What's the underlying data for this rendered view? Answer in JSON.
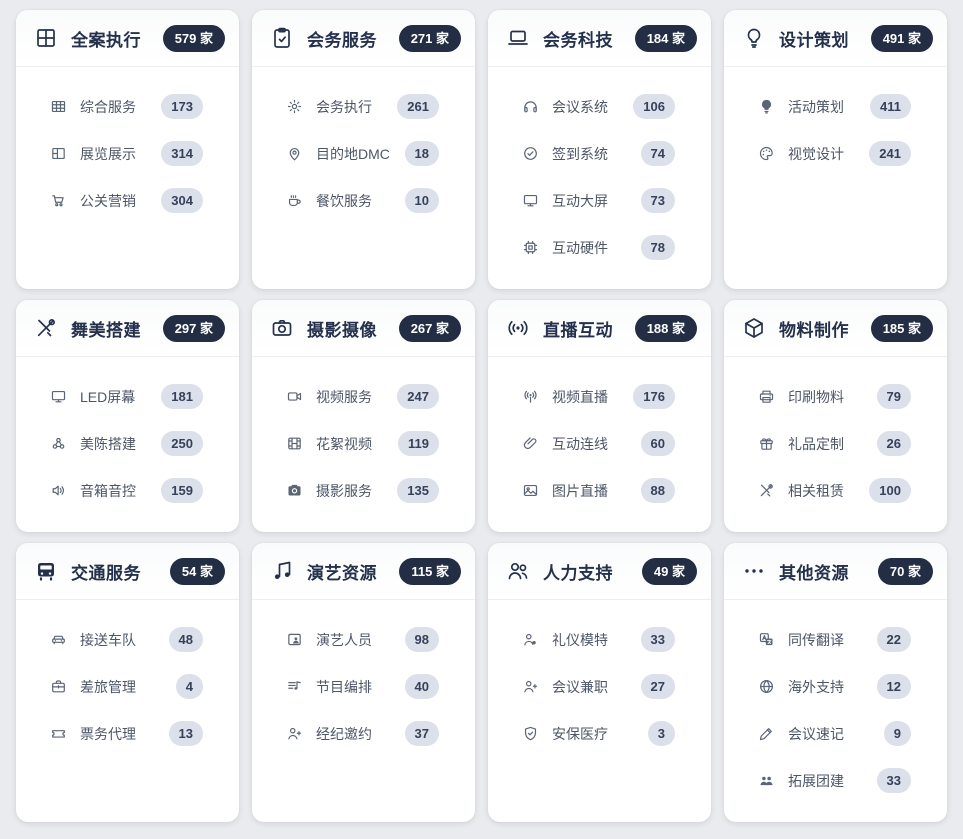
{
  "count_suffix": "家",
  "colors": {
    "page_background": "#e9ebee",
    "card_background": "#ffffff",
    "title_navy": "#25314c",
    "header_badge_bg": "#232e44",
    "header_badge_text": "#ffffff",
    "item_text": "#4d5667",
    "item_badge_bg": "#dbe0ea",
    "item_badge_text": "#36415a"
  },
  "cards": [
    {
      "title": "全案执行",
      "icon": "grid-icon",
      "count": "579",
      "items": [
        {
          "icon": "table-grid-icon",
          "label": "综合服务",
          "count": "173"
        },
        {
          "icon": "layout-icon",
          "label": "展览展示",
          "count": "314"
        },
        {
          "icon": "cart-icon",
          "label": "公关营销",
          "count": "304"
        }
      ]
    },
    {
      "title": "会务服务",
      "icon": "clipboard-check-icon",
      "count": "271",
      "items": [
        {
          "icon": "gear-icon",
          "label": "会务执行",
          "count": "261"
        },
        {
          "icon": "map-pin-icon",
          "label": "目的地DMC",
          "count": "18"
        },
        {
          "icon": "coffee-icon",
          "label": "餐饮服务",
          "count": "10"
        }
      ]
    },
    {
      "title": "会务科技",
      "icon": "laptop-icon",
      "count": "184",
      "items": [
        {
          "icon": "headphones-icon",
          "label": "会议系统",
          "count": "106"
        },
        {
          "icon": "check-circle-icon",
          "label": "签到系统",
          "count": "74"
        },
        {
          "icon": "monitor-icon",
          "label": "互动大屏",
          "count": "73"
        },
        {
          "icon": "cpu-icon",
          "label": "互动硬件",
          "count": "78"
        }
      ]
    },
    {
      "title": "设计策划",
      "icon": "lightbulb-icon",
      "count": "491",
      "items": [
        {
          "icon": "lightbulb-filled-icon",
          "label": "活动策划",
          "count": "411"
        },
        {
          "icon": "palette-icon",
          "label": "视觉设计",
          "count": "241"
        }
      ]
    },
    {
      "title": "舞美搭建",
      "icon": "tools-icon",
      "count": "297",
      "items": [
        {
          "icon": "monitor-icon",
          "label": "LED屏幕",
          "count": "181"
        },
        {
          "icon": "cluster-icon",
          "label": "美陈搭建",
          "count": "250"
        },
        {
          "icon": "speaker-icon",
          "label": "音箱音控",
          "count": "159"
        }
      ]
    },
    {
      "title": "摄影摄像",
      "icon": "camera-icon",
      "count": "267",
      "items": [
        {
          "icon": "video-camera-icon",
          "label": "视频服务",
          "count": "247"
        },
        {
          "icon": "film-icon",
          "label": "花絮视频",
          "count": "119"
        },
        {
          "icon": "camera-filled-icon",
          "label": "摄影服务",
          "count": "135"
        }
      ]
    },
    {
      "title": "直播互动",
      "icon": "broadcast-icon",
      "count": "188",
      "items": [
        {
          "icon": "live-antenna-icon",
          "label": "视频直播",
          "count": "176"
        },
        {
          "icon": "link-icon",
          "label": "互动连线",
          "count": "60"
        },
        {
          "icon": "image-icon",
          "label": "图片直播",
          "count": "88"
        }
      ]
    },
    {
      "title": "物料制作",
      "icon": "cube-icon",
      "count": "185",
      "items": [
        {
          "icon": "printer-icon",
          "label": "印刷物料",
          "count": "79"
        },
        {
          "icon": "gift-icon",
          "label": "礼品定制",
          "count": "26"
        },
        {
          "icon": "tools-small-icon",
          "label": "相关租赁",
          "count": "100"
        }
      ]
    },
    {
      "title": "交通服务",
      "icon": "bus-icon",
      "count": "54",
      "items": [
        {
          "icon": "car-icon",
          "label": "接送车队",
          "count": "48"
        },
        {
          "icon": "briefcase-icon",
          "label": "差旅管理",
          "count": "4"
        },
        {
          "icon": "ticket-icon",
          "label": "票务代理",
          "count": "13"
        }
      ]
    },
    {
      "title": "演艺资源",
      "icon": "music-note-icon",
      "count": "115",
      "items": [
        {
          "icon": "performer-icon",
          "label": "演艺人员",
          "count": "98"
        },
        {
          "icon": "playlist-icon",
          "label": "节目编排",
          "count": "40"
        },
        {
          "icon": "person-plus-icon",
          "label": "经纪邀约",
          "count": "37"
        }
      ]
    },
    {
      "title": "人力支持",
      "icon": "users-icon",
      "count": "49",
      "items": [
        {
          "icon": "person-dot-icon",
          "label": "礼仪模特",
          "count": "33"
        },
        {
          "icon": "person-plus-icon",
          "label": "会议兼职",
          "count": "27"
        },
        {
          "icon": "shield-check-icon",
          "label": "安保医疗",
          "count": "3"
        }
      ]
    },
    {
      "title": "其他资源",
      "icon": "ellipsis-icon",
      "count": "70",
      "items": [
        {
          "icon": "translate-icon",
          "label": "同传翻译",
          "count": "22"
        },
        {
          "icon": "globe-icon",
          "label": "海外支持",
          "count": "12"
        },
        {
          "icon": "pencil-icon",
          "label": "会议速记",
          "count": "9"
        },
        {
          "icon": "team-icon",
          "label": "拓展团建",
          "count": "33"
        }
      ]
    }
  ]
}
